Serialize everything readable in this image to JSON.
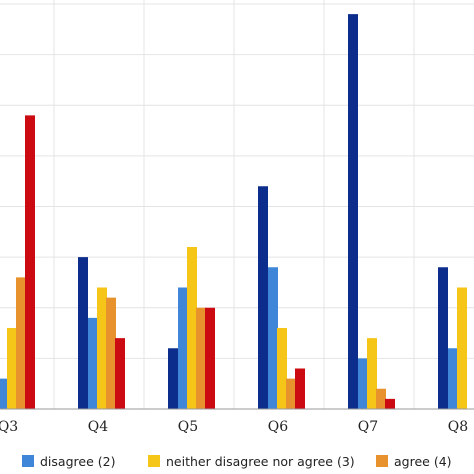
{
  "chart_data": {
    "type": "bar",
    "title": "",
    "xlabel": "",
    "ylabel": "",
    "grid": true,
    "legend_position": "bottom",
    "categories": [
      "Q3",
      "Q4",
      "Q5",
      "Q6",
      "Q7",
      "Q8"
    ],
    "ylim": [
      0,
      40
    ],
    "series": [
      {
        "key": "s1",
        "color": "#0d2d8c",
        "values": [
          1,
          15,
          6,
          22,
          39,
          14
        ]
      },
      {
        "name": "disagree (2)",
        "color": "#3f86d8",
        "values": [
          3,
          9,
          12,
          14,
          5,
          6
        ]
      },
      {
        "name": "neither disagree nor agree (3)",
        "color": "#f5c518",
        "values": [
          8,
          12,
          16,
          8,
          7,
          12
        ]
      },
      {
        "name": "agree (4)",
        "color": "#e8922e",
        "values": [
          13,
          11,
          10,
          3,
          2,
          0
        ]
      },
      {
        "key": "s5",
        "color": "#cc0a12",
        "values": [
          29,
          7,
          10,
          4,
          1,
          0
        ]
      }
    ]
  }
}
